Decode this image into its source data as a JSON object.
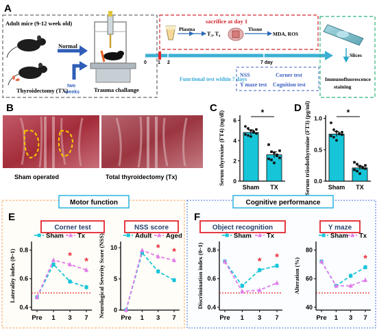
{
  "colors": {
    "cyan": "#16c5d8",
    "magenta": "#e07ce8",
    "red_star": "#e8323c",
    "navy": "#27406b",
    "panel_orange": "#f4a460",
    "panel_blue": "#3b6fd0",
    "photo_red": "#b0303c",
    "green_box": "#2fb37a"
  },
  "panels": {
    "A": "A",
    "B": "B",
    "C": "C",
    "D": "D",
    "E": "E",
    "F": "F"
  },
  "panelA": {
    "mice_title": "Adult mice (9-12 week old)",
    "normal": "Normal",
    "tx": "Thyroidectomy (TX)",
    "two_weeks_1": "two",
    "two_weeks_2": "weeks",
    "trauma": "Trauma challange",
    "sacrifice": "sacrifice at day 1",
    "plasma": "Plasma",
    "t3t4": "T₃, T₄",
    "tissue": "Tissue",
    "mda": "MDA, ROS",
    "timeline_ticks": [
      "0",
      "1",
      "2",
      "7 day"
    ],
    "functional": "Functional test within 7 days",
    "nss": "NSS",
    "ymaze": "Y maze test",
    "corner": "Corner test",
    "cognition": "Cognition test",
    "slices": "Slices",
    "immuno_1": "Immunofluorescence",
    "immuno_2": "staining"
  },
  "panelB": {
    "sham": "Sham operated",
    "tx": "Total thyroidectomy (Tx)"
  },
  "section_titles": {
    "motor": "Motor function",
    "cognitive": "Cognitive performance"
  },
  "chart_data": [
    {
      "id": "C",
      "type": "bar",
      "ylabel": "Serum thyroxine (FT4) (ng/dl)",
      "categories": [
        "Sham",
        "TX"
      ],
      "values": [
        4.8,
        2.6
      ],
      "errors": [
        0.25,
        0.3
      ],
      "yticks": [
        0,
        2,
        4,
        6
      ],
      "ylim": [
        0,
        6.5
      ],
      "points": [
        [
          5.4,
          5.2,
          5.0,
          4.9,
          4.7,
          4.6,
          4.5,
          4.4,
          4.8,
          5.1
        ],
        [
          3.6,
          2.9,
          2.8,
          2.5,
          2.3,
          2.2,
          2.1,
          1.8,
          2.6,
          3.0
        ]
      ],
      "significance": "*"
    },
    {
      "id": "D",
      "type": "bar",
      "ylabel": "Serum triiodothyronine (FT3) (pg/ml)",
      "categories": [
        "Sham",
        "TX"
      ],
      "values": [
        0.75,
        0.21
      ],
      "errors": [
        0.04,
        0.03
      ],
      "yticks": [
        "0.0",
        "0.5",
        "1.0"
      ],
      "ylim": [
        0,
        1.05
      ],
      "points": [
        [
          0.93,
          0.82,
          0.79,
          0.76,
          0.74,
          0.72,
          0.7,
          0.65,
          0.75,
          0.78
        ],
        [
          0.3,
          0.27,
          0.24,
          0.22,
          0.2,
          0.18,
          0.16,
          0.12,
          0.21,
          0.25
        ]
      ],
      "significance": "*"
    },
    {
      "id": "E1",
      "type": "line",
      "title": "Corner test",
      "ylabel": "Laterality index (0~1)",
      "categories": [
        "Pre",
        "1",
        "3",
        "7"
      ],
      "series": [
        {
          "name": "Sham",
          "values": [
            0.47,
            0.7,
            0.58,
            0.54
          ]
        },
        {
          "name": "Tx",
          "values": [
            0.47,
            0.73,
            0.7,
            0.66
          ]
        }
      ],
      "yticks": [
        "0.4",
        "0.6",
        "0.8"
      ],
      "ylim": [
        0.38,
        0.86
      ],
      "baseline": 0.5,
      "stars_at": [
        2,
        3
      ]
    },
    {
      "id": "E2",
      "type": "line",
      "title": "NSS score",
      "ylabel": "Neurological Severity Score (NSS)",
      "categories": [
        "Pre",
        "1",
        "3",
        "7"
      ],
      "series": [
        {
          "name": "Adult",
          "values": [
            0,
            9.2,
            6.2,
            4.8
          ]
        },
        {
          "name": "Aged",
          "values": [
            0,
            9.6,
            8.6,
            8.0
          ]
        }
      ],
      "yticks": [
        "0",
        "5",
        "10"
      ],
      "ylim": [
        0,
        11
      ],
      "stars_at": [
        2,
        3
      ]
    },
    {
      "id": "F1",
      "type": "line",
      "title": "Object recognition",
      "ylabel": "Discrimination index (0~1)",
      "categories": [
        "Pre",
        "1",
        "3",
        "7"
      ],
      "series": [
        {
          "name": "Sham",
          "values": [
            0.72,
            0.55,
            0.66,
            0.69
          ]
        },
        {
          "name": "Tx",
          "values": [
            0.72,
            0.51,
            0.52,
            0.57
          ]
        }
      ],
      "yticks": [
        "0.4",
        "0.6",
        "0.8"
      ],
      "ylim": [
        0.38,
        0.86
      ],
      "baseline": 0.5,
      "stars_at": [
        2,
        3
      ]
    },
    {
      "id": "F2",
      "type": "line",
      "title": "Y maze",
      "ylabel": "Alteration (%)",
      "categories": [
        "Pre",
        "1",
        "3",
        "7"
      ],
      "series": [
        {
          "name": "Sham",
          "values": [
            72,
            55,
            62,
            68
          ]
        },
        {
          "name": "Tx",
          "values": [
            72,
            55,
            55,
            59
          ]
        }
      ],
      "yticks": [
        "40",
        "60",
        "80"
      ],
      "ylim": [
        38,
        86
      ],
      "baseline": 50,
      "stars_at": [
        3
      ]
    }
  ]
}
